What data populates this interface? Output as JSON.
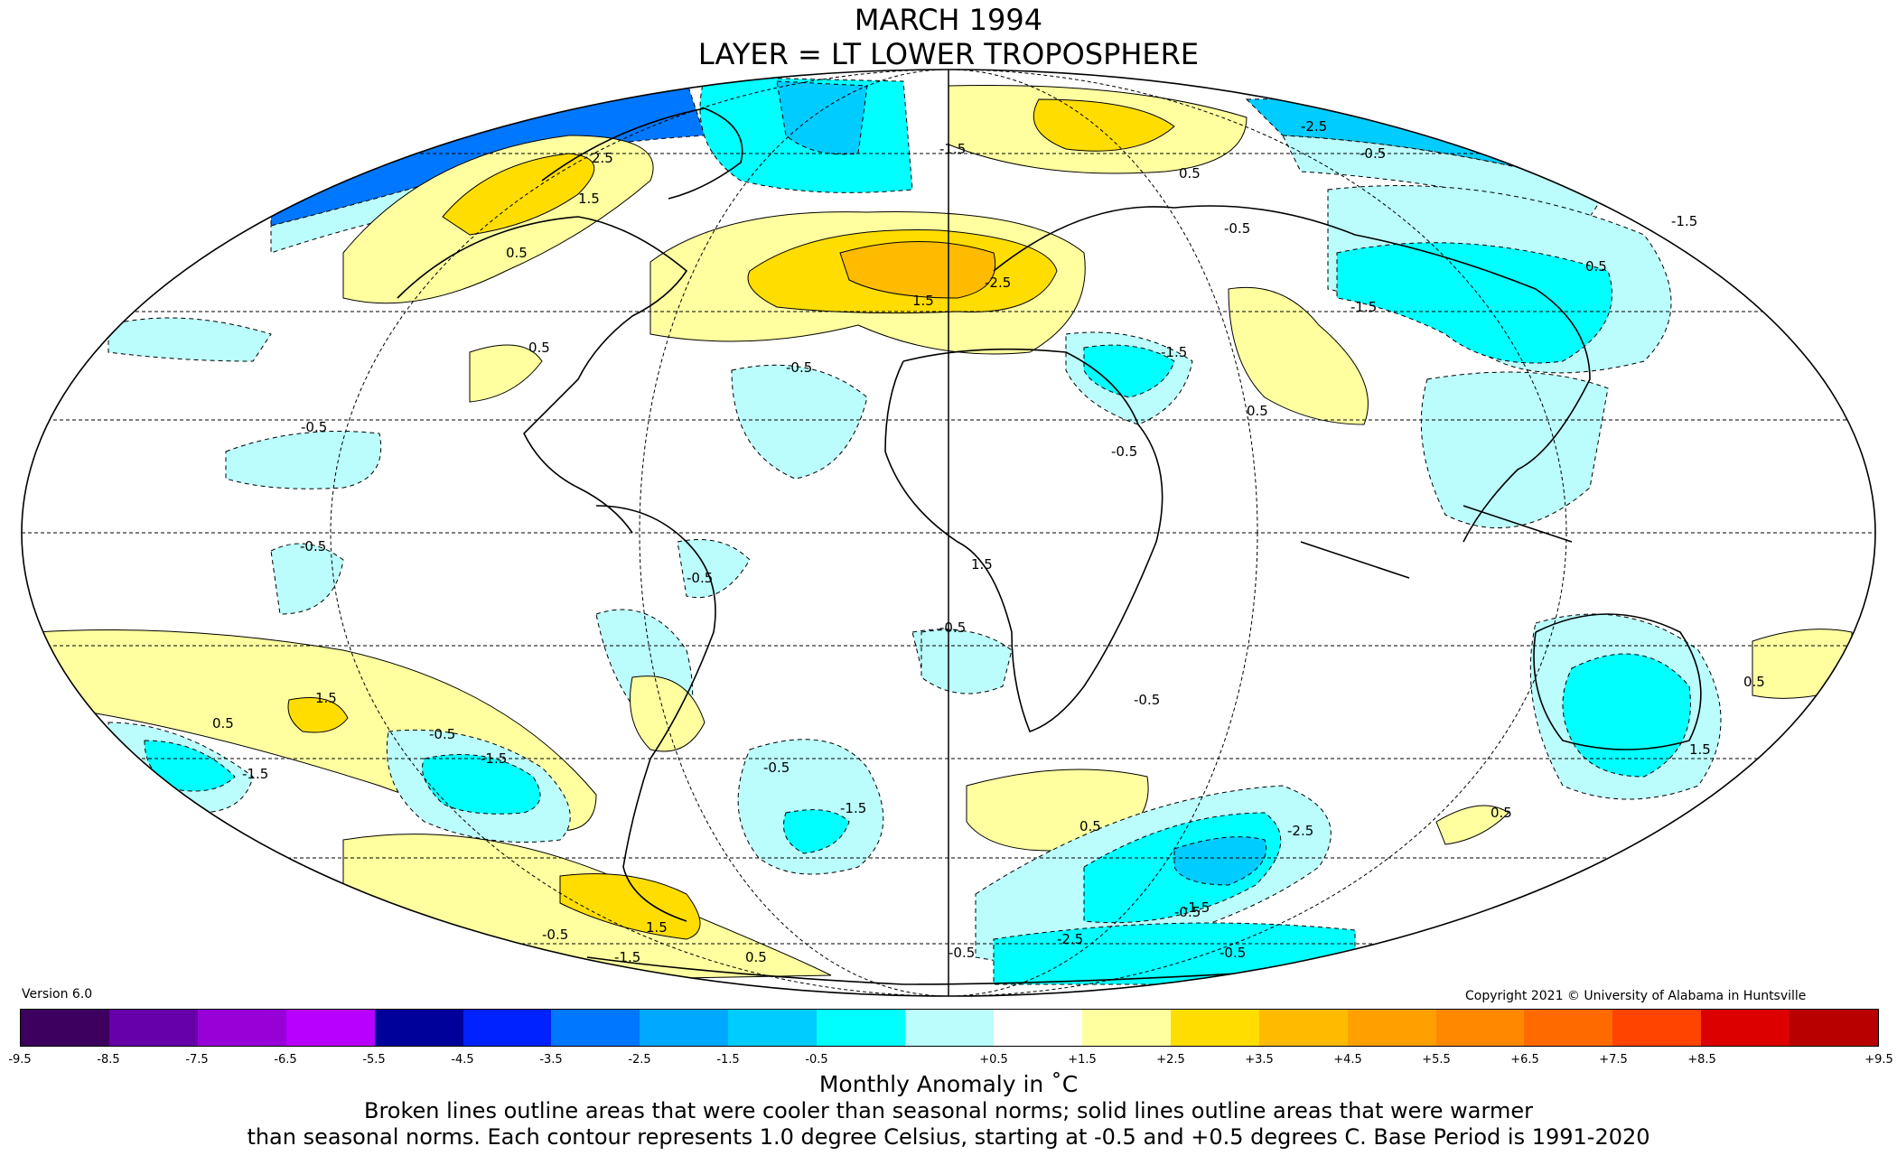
{
  "title": {
    "line1": "MARCH 1994",
    "line2": "LAYER = LT LOWER TROPOSPHERE"
  },
  "version": "Version 6.0",
  "copyright": "Copyright 2021 © University of Alabama in Huntsville",
  "colorbar": {
    "label": "Monthly Anomaly in ˚C",
    "ticks": [
      "-9.5",
      "-8.5",
      "-7.5",
      "-6.5",
      "-5.5",
      "-4.5",
      "-3.5",
      "-2.5",
      "-1.5",
      "-0.5",
      "+0.5",
      "+1.5",
      "+2.5",
      "+3.5",
      "+4.5",
      "+5.5",
      "+6.5",
      "+7.5",
      "+8.5",
      "+9.5"
    ],
    "colors": [
      "#3d005e",
      "#6600a8",
      "#9800d8",
      "#b800ff",
      "#00009a",
      "#0022ff",
      "#0077ff",
      "#00a8ff",
      "#00ccff",
      "#00ffff",
      "#bbfdfd",
      "#ffffff",
      "#ffffa0",
      "#ffdd00",
      "#ffbb00",
      "#ffa000",
      "#ff8800",
      "#ff6a00",
      "#ff4400",
      "#dd0000",
      "#b80000"
    ]
  },
  "caption": {
    "line1": "Broken lines outline areas that were cooler than seasonal norms; solid lines outline areas that were warmer",
    "line2": "than seasonal norms. Each contour represents 1.0 degree Celsius, starting at -0.5 and +0.5 degrees C. Base Period is 1991-2020"
  },
  "map": {
    "projection": "Mollweide",
    "contour_labels": [
      "0.5",
      "-0.5",
      "-1.5",
      "-2.5",
      "1.5",
      "2.5",
      "-0.5",
      "0.5",
      "-1.5",
      "-0.5",
      "1.5",
      "0.5",
      "-1.5",
      "-0.5",
      "-2.5",
      "1.5",
      "0.5",
      "-0.5",
      "-1.5",
      "0.5",
      "1.5",
      "-0.5",
      "-1.5",
      "-2.5",
      "0.5",
      "-0.5",
      "-1.5",
      "-0.5",
      "0.5",
      "-0.5",
      "-0.5",
      "1.5",
      "0.5",
      "-0.5",
      "-1.5",
      "-0.5",
      "-2.5",
      "0.5",
      "-1.5",
      "-0.5",
      "-0.5",
      "0.5",
      "-0.5",
      "1.5",
      "-1.5"
    ]
  }
}
